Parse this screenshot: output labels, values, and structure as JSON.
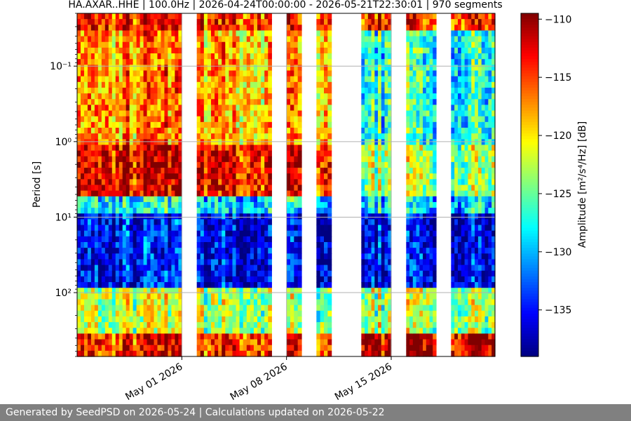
{
  "chart_data": {
    "type": "heatmap",
    "title": "HA.AXAR..HHE | 100.0Hz | 2026-04-24T00:00:00 - 2026-05-21T22:30:01 | 970 segments",
    "ylabel": "Period [s]",
    "xlabel": "",
    "colorbar_label": "Amplitude [m²/s⁴/Hz] [dB]",
    "y_scale": "log",
    "y_inverted": true,
    "ylim_period_s": [
      0.02,
      700
    ],
    "y_tick_labels": [
      "10⁻¹",
      "10⁰",
      "10¹",
      "10²"
    ],
    "y_tick_values": [
      0.1,
      1,
      10,
      100
    ],
    "x_range_dates": [
      "2026-04-24T00:00:00",
      "2026-05-21T22:30:01"
    ],
    "x_tick_labels": [
      "May 01 2026",
      "May 08 2026",
      "May 15 2026"
    ],
    "x_tick_dates": [
      "2026-05-01",
      "2026-05-08",
      "2026-05-15"
    ],
    "grid": true,
    "colormap": "jet",
    "color_range_db": [
      -139,
      -109.5
    ],
    "colorbar_ticks": [
      -110,
      -115,
      -120,
      -125,
      -130,
      -135
    ],
    "data_segments": [
      {
        "start": "2026-04-24T00:00:00",
        "end": "2026-05-01T00:00:00"
      },
      {
        "start": "2026-05-02T00:00:00",
        "end": "2026-05-07T00:00:00"
      },
      {
        "start": "2026-05-08T00:00:00",
        "end": "2026-05-09T00:00:00"
      },
      {
        "start": "2026-05-10T00:00:00",
        "end": "2026-05-11T00:00:00"
      },
      {
        "start": "2026-05-13T00:00:00",
        "end": "2026-05-15T00:00:00"
      },
      {
        "start": "2026-05-16T00:00:00",
        "end": "2026-05-18T00:00:00"
      },
      {
        "start": "2026-05-19T00:00:00",
        "end": "2026-05-21T22:30:01"
      }
    ]
  },
  "footer": {
    "text": "Generated by SeedPSD on 2026-05-24 | Calculations updated on 2026-05-22"
  }
}
